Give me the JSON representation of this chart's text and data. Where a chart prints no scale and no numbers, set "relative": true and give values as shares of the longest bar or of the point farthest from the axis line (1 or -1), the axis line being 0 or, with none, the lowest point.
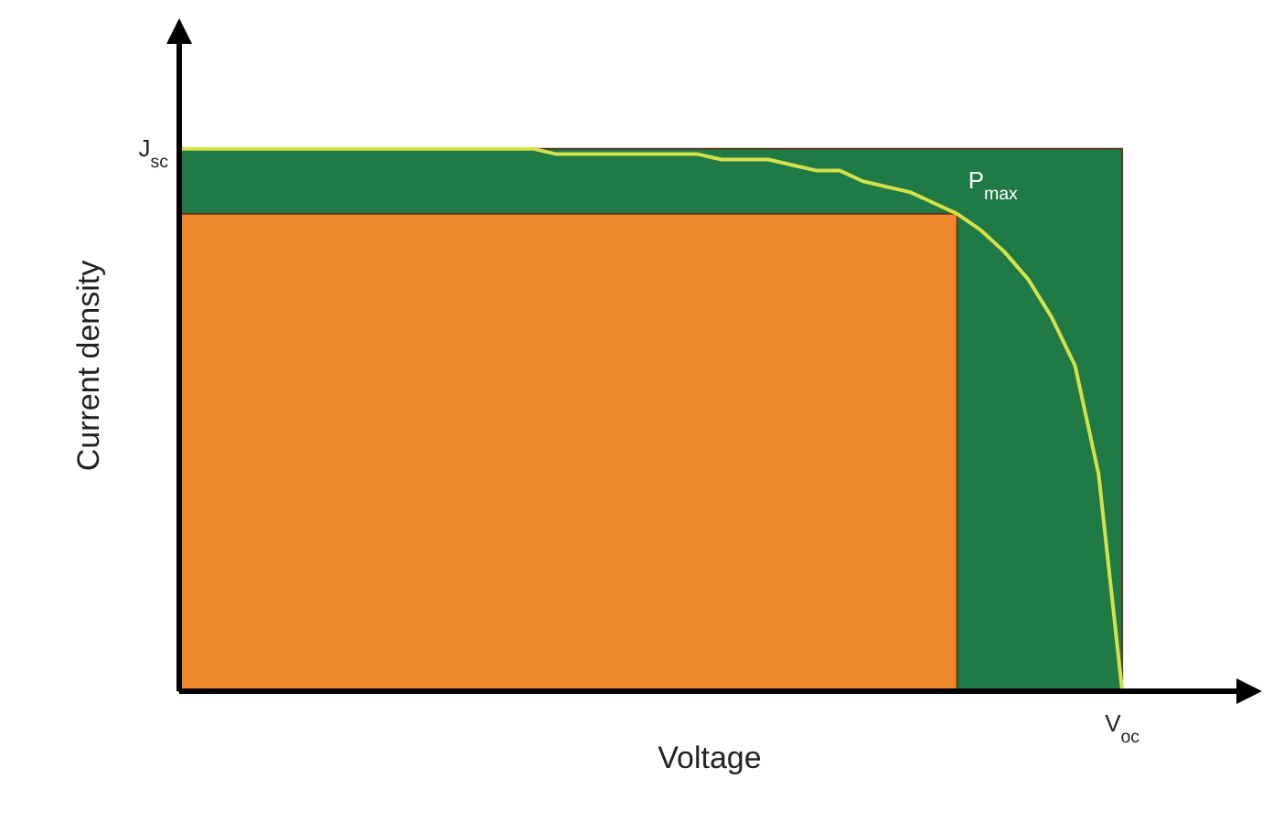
{
  "chart_data": {
    "type": "line",
    "relative": true,
    "xlabel": "Voltage",
    "ylabel": "Current density",
    "categories": [
      null,
      null,
      null,
      null,
      null,
      null,
      null,
      null,
      null,
      null,
      null,
      null,
      null,
      null,
      null,
      null,
      null,
      null,
      null,
      null,
      null,
      null,
      null,
      null,
      null,
      null,
      null,
      null,
      null,
      null,
      null,
      null,
      null,
      null,
      null,
      null,
      null,
      null,
      null,
      null,
      null,
      null,
      null,
      null,
      null,
      null
    ],
    "series": [
      {
        "color": "#d6e24c",
        "values": [
          1,
          1,
          1,
          1,
          1,
          1,
          1,
          1,
          1,
          1,
          1,
          1,
          1,
          1,
          1,
          1,
          0.99,
          0.99,
          0.99,
          0.99,
          0.99,
          0.99,
          0.99,
          0.98,
          0.98,
          0.98,
          0.97,
          0.96,
          0.96,
          0.94,
          0.93,
          0.92,
          0.9,
          0.88,
          0.85,
          0.81,
          0.76,
          0.69,
          0.6,
          0.4,
          0,
          null,
          null,
          null,
          null,
          null
        ]
      }
    ],
    "annotations": [
      "P$_{max}$",
      "J$_{sc}$",
      "V$_{oc}$"
    ],
    "grid": false,
    "marker": "none"
  }
}
